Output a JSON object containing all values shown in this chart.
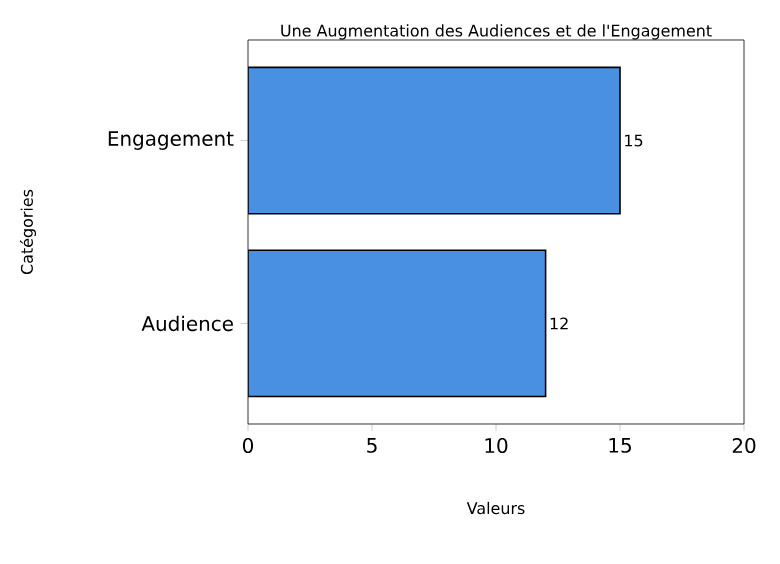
{
  "chart_data": {
    "type": "bar",
    "orientation": "horizontal",
    "title": "Une Augmentation des Audiences et de l'Engagement",
    "xlabel": "Valeurs",
    "ylabel": "Catégories",
    "categories": [
      "Engagement",
      "Audience"
    ],
    "values": [
      15,
      12
    ],
    "color": "#4a90e2",
    "xlim": [
      0,
      20
    ],
    "xticks": [
      0,
      5,
      10,
      15,
      20
    ],
    "data_labels": true
  }
}
